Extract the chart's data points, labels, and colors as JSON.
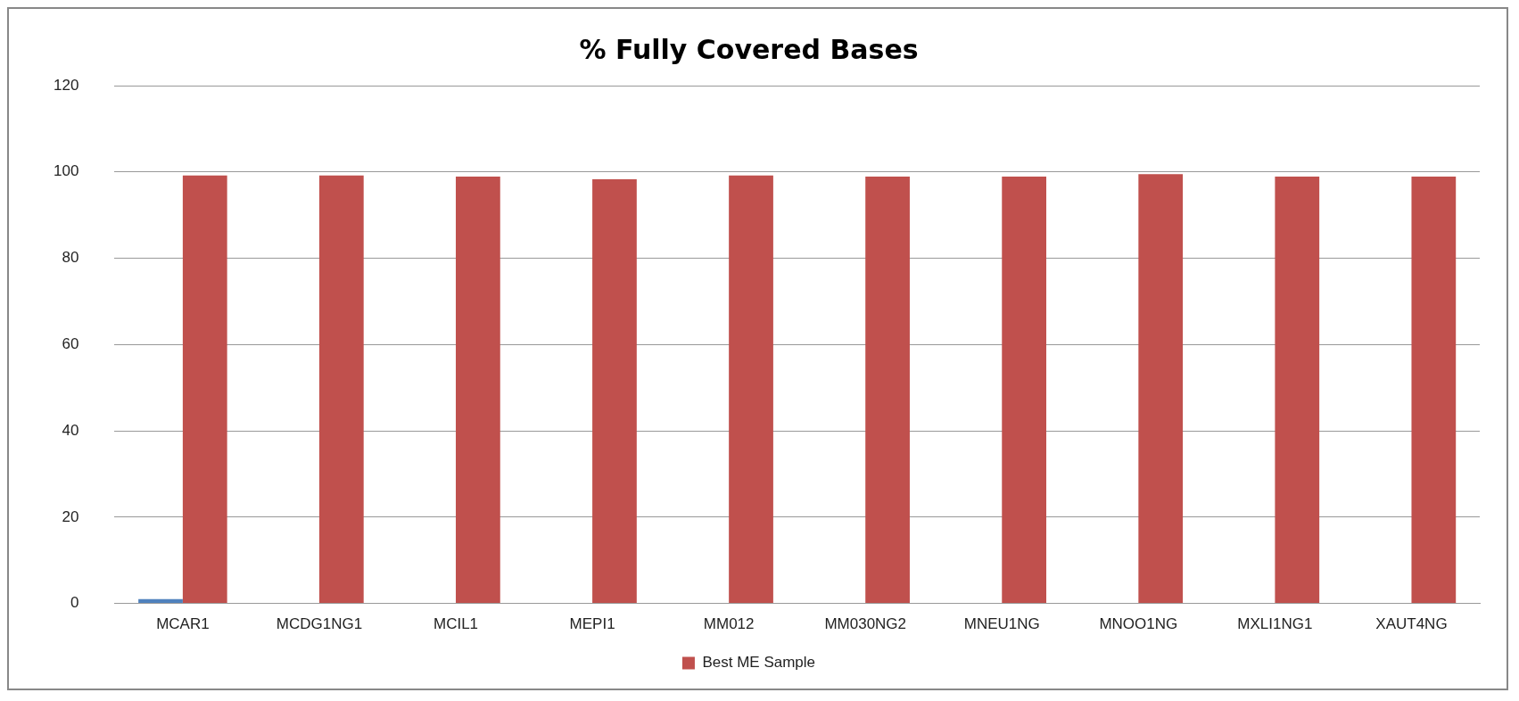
{
  "chart_data": {
    "type": "bar",
    "title": "% Fully Covered Bases",
    "categories": [
      "MCAR1",
      "MCDG1NG1",
      "MCIL1",
      "MEPI1",
      "MM012",
      "MM030NG2",
      "MNEU1NG",
      "MNOO1NG",
      "MXLI1NG1",
      "XAUT4NG"
    ],
    "series": [
      {
        "color": "#4f81bd",
        "values": [
          1,
          null,
          null,
          null,
          null,
          null,
          null,
          null,
          null,
          null
        ]
      },
      {
        "name": "Best ME Sample",
        "color": "#c0504d",
        "values": [
          99.2,
          99.2,
          98.9,
          98.3,
          99.2,
          98.9,
          98.9,
          99.5,
          98.9,
          98.9
        ]
      }
    ],
    "ylim": [
      0,
      120
    ],
    "yticks": [
      0,
      20,
      40,
      60,
      80,
      100,
      120
    ],
    "grid": "y",
    "legend": "bottom"
  }
}
